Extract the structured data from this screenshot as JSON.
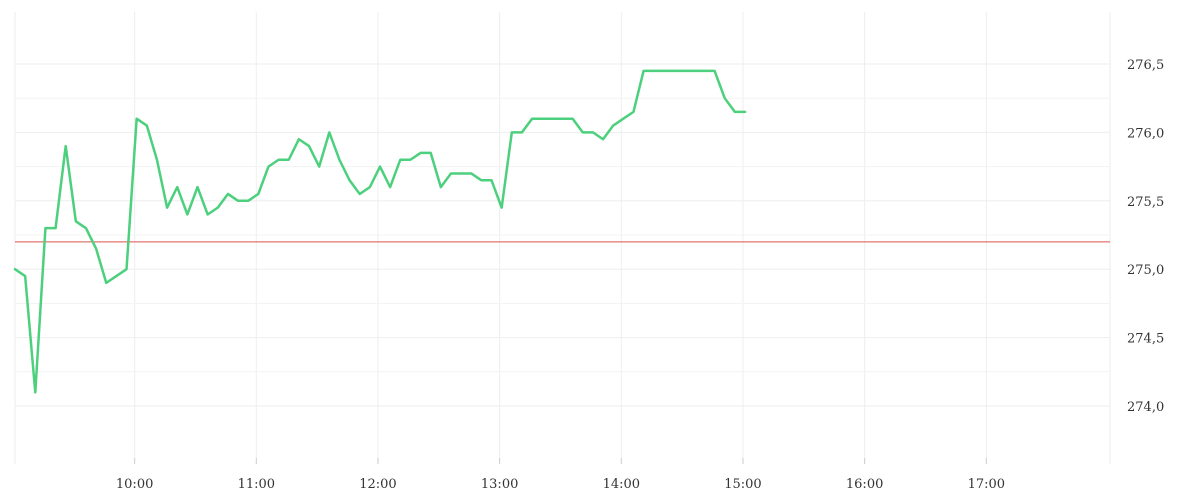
{
  "chart_data": {
    "type": "line",
    "title": "",
    "xlabel": "",
    "ylabel": "",
    "x_ticks": [
      "10:00",
      "11:00",
      "12:00",
      "13:00",
      "14:00",
      "15:00",
      "16:00",
      "17:00"
    ],
    "y_ticks": [
      "274,0",
      "274,5",
      "275,0",
      "275,5",
      "276,0",
      "276,5"
    ],
    "xlim": [
      "09:01",
      "18:01"
    ],
    "ylim": [
      273.62,
      276.88
    ],
    "grid": true,
    "reference_line": {
      "y": 275.2,
      "color": "#d9534f"
    },
    "series": [
      {
        "color": "#4cd07d",
        "points": [
          [
            "09:01",
            275.0
          ],
          [
            "09:06",
            274.95
          ],
          [
            "09:11",
            274.1
          ],
          [
            "09:16",
            275.3
          ],
          [
            "09:21",
            275.3
          ],
          [
            "09:26",
            275.9
          ],
          [
            "09:31",
            275.35
          ],
          [
            "09:36",
            275.3
          ],
          [
            "09:41",
            275.15
          ],
          [
            "09:46",
            274.9
          ],
          [
            "09:51",
            274.95
          ],
          [
            "09:56",
            275.0
          ],
          [
            "10:01",
            276.1
          ],
          [
            "10:06",
            276.05
          ],
          [
            "10:11",
            275.8
          ],
          [
            "10:16",
            275.45
          ],
          [
            "10:21",
            275.6
          ],
          [
            "10:26",
            275.4
          ],
          [
            "10:31",
            275.6
          ],
          [
            "10:36",
            275.4
          ],
          [
            "10:41",
            275.45
          ],
          [
            "10:46",
            275.55
          ],
          [
            "10:51",
            275.5
          ],
          [
            "10:56",
            275.5
          ],
          [
            "11:01",
            275.55
          ],
          [
            "11:06",
            275.75
          ],
          [
            "11:11",
            275.8
          ],
          [
            "11:16",
            275.8
          ],
          [
            "11:21",
            275.95
          ],
          [
            "11:26",
            275.9
          ],
          [
            "11:31",
            275.75
          ],
          [
            "11:36",
            276.0
          ],
          [
            "11:41",
            275.8
          ],
          [
            "11:46",
            275.65
          ],
          [
            "11:51",
            275.55
          ],
          [
            "11:56",
            275.6
          ],
          [
            "12:01",
            275.75
          ],
          [
            "12:06",
            275.6
          ],
          [
            "12:11",
            275.8
          ],
          [
            "12:16",
            275.8
          ],
          [
            "12:21",
            275.85
          ],
          [
            "12:26",
            275.85
          ],
          [
            "12:31",
            275.6
          ],
          [
            "12:36",
            275.7
          ],
          [
            "12:41",
            275.7
          ],
          [
            "12:46",
            275.7
          ],
          [
            "12:51",
            275.65
          ],
          [
            "12:56",
            275.65
          ],
          [
            "13:01",
            275.45
          ],
          [
            "13:06",
            276.0
          ],
          [
            "13:11",
            276.0
          ],
          [
            "13:16",
            276.1
          ],
          [
            "13:21",
            276.1
          ],
          [
            "13:26",
            276.1
          ],
          [
            "13:31",
            276.1
          ],
          [
            "13:36",
            276.1
          ],
          [
            "13:41",
            276.0
          ],
          [
            "13:46",
            276.0
          ],
          [
            "13:51",
            275.95
          ],
          [
            "13:56",
            276.05
          ],
          [
            "14:01",
            276.1
          ],
          [
            "14:06",
            276.15
          ],
          [
            "14:11",
            276.45
          ],
          [
            "14:16",
            276.45
          ],
          [
            "14:21",
            276.45
          ],
          [
            "14:26",
            276.45
          ],
          [
            "14:31",
            276.45
          ],
          [
            "14:36",
            276.45
          ],
          [
            "14:41",
            276.45
          ],
          [
            "14:46",
            276.45
          ],
          [
            "14:51",
            276.25
          ],
          [
            "14:56",
            276.15
          ],
          [
            "15:01",
            276.15
          ]
        ]
      }
    ]
  }
}
